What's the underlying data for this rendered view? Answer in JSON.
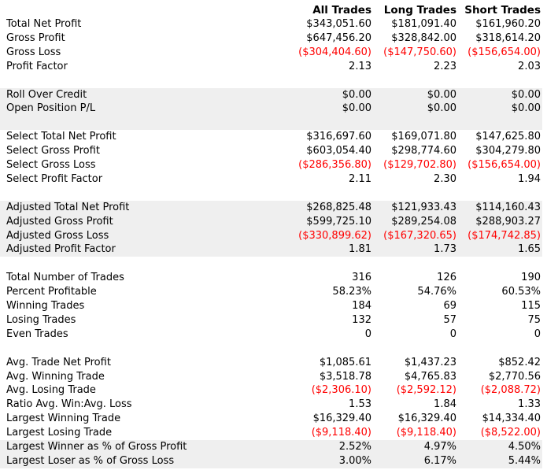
{
  "columns": [
    "All Trades",
    "Long Trades",
    "Short Trades"
  ],
  "negative_color": "#ff0000",
  "rows": [
    {
      "label": "Total Net Profit",
      "values": [
        "$343,051.60",
        "$181,091.40",
        "$161,960.20"
      ],
      "neg": false,
      "shaded": false
    },
    {
      "label": "Gross Profit",
      "values": [
        "$647,456.20",
        "$328,842.00",
        "$318,614.20"
      ],
      "neg": false,
      "shaded": false
    },
    {
      "label": "Gross Loss",
      "values": [
        "($304,404.60)",
        "($147,750.60)",
        "($156,654.00)"
      ],
      "neg": true,
      "shaded": false
    },
    {
      "label": "Profit Factor",
      "values": [
        "2.13",
        "2.23",
        "2.03"
      ],
      "neg": false,
      "shaded": false
    },
    {
      "label": "",
      "values": [
        "",
        "",
        ""
      ],
      "neg": false,
      "shaded": false
    },
    {
      "label": "Roll Over Credit",
      "values": [
        "$0.00",
        "$0.00",
        "$0.00"
      ],
      "neg": false,
      "shaded": true
    },
    {
      "label": "Open Position P/L",
      "values": [
        "$0.00",
        "$0.00",
        "$0.00"
      ],
      "neg": false,
      "shaded": true
    },
    {
      "label": "",
      "values": [
        "",
        "",
        ""
      ],
      "neg": false,
      "shaded": true
    },
    {
      "label": "Select Total Net Profit",
      "values": [
        "$316,697.60",
        "$169,071.80",
        "$147,625.80"
      ],
      "neg": false,
      "shaded": false
    },
    {
      "label": "Select Gross Profit",
      "values": [
        "$603,054.40",
        "$298,774.60",
        "$304,279.80"
      ],
      "neg": false,
      "shaded": false
    },
    {
      "label": "Select Gross Loss",
      "values": [
        "($286,356.80)",
        "($129,702.80)",
        "($156,654.00)"
      ],
      "neg": true,
      "shaded": false
    },
    {
      "label": "Select Profit Factor",
      "values": [
        "2.11",
        "2.30",
        "1.94"
      ],
      "neg": false,
      "shaded": false
    },
    {
      "label": "",
      "values": [
        "",
        "",
        ""
      ],
      "neg": false,
      "shaded": false
    },
    {
      "label": "Adjusted Total Net Profit",
      "values": [
        "$268,825.48",
        "$121,933.43",
        "$114,160.43"
      ],
      "neg": false,
      "shaded": true
    },
    {
      "label": "Adjusted Gross Profit",
      "values": [
        "$599,725.10",
        "$289,254.08",
        "$288,903.27"
      ],
      "neg": false,
      "shaded": true
    },
    {
      "label": "Adjusted Gross Loss",
      "values": [
        "($330,899.62)",
        "($167,320.65)",
        "($174,742.85)"
      ],
      "neg": true,
      "shaded": true
    },
    {
      "label": "Adjusted Profit Factor",
      "values": [
        "1.81",
        "1.73",
        "1.65"
      ],
      "neg": false,
      "shaded": true
    },
    {
      "label": "",
      "values": [
        "",
        "",
        ""
      ],
      "neg": false,
      "shaded": false
    },
    {
      "label": "Total Number of Trades",
      "values": [
        "316",
        "126",
        "190"
      ],
      "neg": false,
      "shaded": false
    },
    {
      "label": "Percent Profitable",
      "values": [
        "58.23%",
        "54.76%",
        "60.53%"
      ],
      "neg": false,
      "shaded": false
    },
    {
      "label": "Winning Trades",
      "values": [
        "184",
        "69",
        "115"
      ],
      "neg": false,
      "shaded": false
    },
    {
      "label": "Losing Trades",
      "values": [
        "132",
        "57",
        "75"
      ],
      "neg": false,
      "shaded": false
    },
    {
      "label": "Even Trades",
      "values": [
        "0",
        "0",
        "0"
      ],
      "neg": false,
      "shaded": false
    },
    {
      "label": "",
      "values": [
        "",
        "",
        ""
      ],
      "neg": false,
      "shaded": false
    },
    {
      "label": "Avg. Trade Net Profit",
      "values": [
        "$1,085.61",
        "$1,437.23",
        "$852.42"
      ],
      "neg": false,
      "shaded": false
    },
    {
      "label": "Avg. Winning Trade",
      "values": [
        "$3,518.78",
        "$4,765.83",
        "$2,770.56"
      ],
      "neg": false,
      "shaded": false
    },
    {
      "label": "Avg. Losing Trade",
      "values": [
        "($2,306.10)",
        "($2,592.12)",
        "($2,088.72)"
      ],
      "neg": true,
      "shaded": false
    },
    {
      "label": "Ratio Avg. Win:Avg. Loss",
      "values": [
        "1.53",
        "1.84",
        "1.33"
      ],
      "neg": false,
      "shaded": false
    },
    {
      "label": "Largest Winning Trade",
      "values": [
        "$16,329.40",
        "$16,329.40",
        "$14,334.40"
      ],
      "neg": false,
      "shaded": false
    },
    {
      "label": "Largest Losing Trade",
      "values": [
        "($9,118.40)",
        "($9,118.40)",
        "($8,522.00)"
      ],
      "neg": true,
      "shaded": false
    },
    {
      "label": "Largest Winner as % of Gross Profit",
      "values": [
        "2.52%",
        "4.97%",
        "4.50%"
      ],
      "neg": false,
      "shaded": true
    },
    {
      "label": "Largest Loser as % of Gross Loss",
      "values": [
        "3.00%",
        "6.17%",
        "5.44%"
      ],
      "neg": false,
      "shaded": true
    }
  ]
}
